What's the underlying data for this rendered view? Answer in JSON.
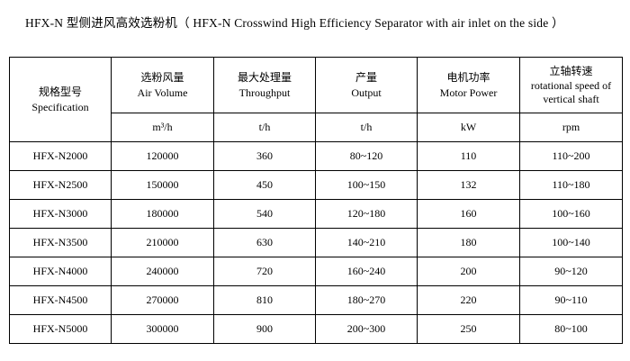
{
  "page": {
    "background": "#ffffff",
    "text_color": "#000000",
    "border_color": "#000000"
  },
  "title": "HFX-N 型侧进风高效选粉机（ HFX-N Crosswind High Efficiency Separator with air inlet on the side ）",
  "table": {
    "columns": [
      {
        "zh": "规格型号",
        "en": "Specification",
        "unit": ""
      },
      {
        "zh": "选粉风量",
        "en": "Air Volume",
        "unit": "m³/h"
      },
      {
        "zh": "最大处理量",
        "en": "Throughput",
        "unit": "t/h"
      },
      {
        "zh": "产量",
        "en": "Output",
        "unit": "t/h"
      },
      {
        "zh": "电机功率",
        "en": "Motor Power",
        "unit": "kW"
      },
      {
        "zh": "立轴转速",
        "en": "rotational speed of vertical shaft",
        "unit": "rpm"
      }
    ],
    "rows": [
      [
        "HFX-N2000",
        "120000",
        "360",
        "80~120",
        "110",
        "110~200"
      ],
      [
        "HFX-N2500",
        "150000",
        "450",
        "100~150",
        "132",
        "110~180"
      ],
      [
        "HFX-N3000",
        "180000",
        "540",
        "120~180",
        "160",
        "100~160"
      ],
      [
        "HFX-N3500",
        "210000",
        "630",
        "140~210",
        "180",
        "100~140"
      ],
      [
        "HFX-N4000",
        "240000",
        "720",
        "160~240",
        "200",
        "90~120"
      ],
      [
        "HFX-N4500",
        "270000",
        "810",
        "180~270",
        "220",
        "90~110"
      ],
      [
        "HFX-N5000",
        "300000",
        "900",
        "200~300",
        "250",
        "80~100"
      ]
    ]
  }
}
